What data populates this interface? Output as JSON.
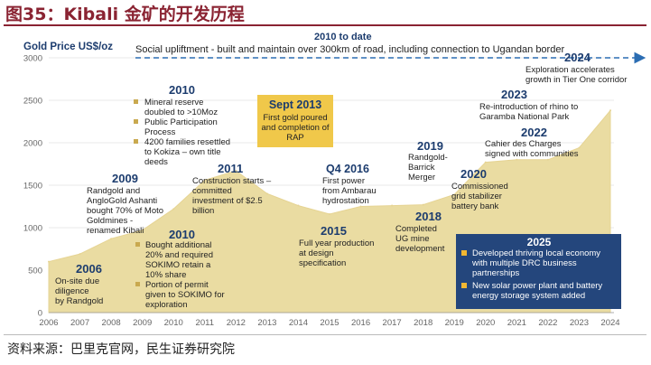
{
  "figure_title": "图35：Kibali 金矿的开发历程",
  "source_note": "资料来源：巴里克官网，民生证券研究院",
  "colors": {
    "area_fill": "#eadca2",
    "area_stroke": "#e6d494",
    "axis_text": "#666666",
    "title_blue": "#1c3c6e",
    "highlight_box": "#f0c84a",
    "box_2025": "#24467c",
    "bullet_2025": "#f2b732",
    "arrow_blue": "#2b6db3",
    "brand_red": "#8a2332"
  },
  "chart_data": {
    "type": "area",
    "ylabel": "Gold Price US$/oz",
    "ylim": [
      0,
      3000
    ],
    "yticks": [
      0,
      500,
      1000,
      1500,
      2000,
      2500,
      3000
    ],
    "x": [
      "2006",
      "2007",
      "2008",
      "2009",
      "2010",
      "2011",
      "2012",
      "2013",
      "2014",
      "2015",
      "2016",
      "2017",
      "2018",
      "2019",
      "2020",
      "2021",
      "2022",
      "2023",
      "2024"
    ],
    "values": [
      600,
      690,
      870,
      970,
      1220,
      1560,
      1670,
      1400,
      1260,
      1160,
      1250,
      1260,
      1270,
      1390,
      1770,
      1800,
      1800,
      1940,
      2380
    ],
    "banner": {
      "label": "2010 to date",
      "text": "Social upliftment  - built and maintain over 300km of road, including connection to Ugandan border"
    },
    "annotations": [
      {
        "year": "2006",
        "text": [
          "On-site due",
          "diligence",
          "by Randgold"
        ]
      },
      {
        "year": "2009",
        "text": [
          "Randgold and",
          "AngloGold Ashanti",
          "bought 70% of Moto",
          "Goldmines -",
          "renamed Kibali"
        ]
      },
      {
        "year": "2010",
        "bullets": [
          "Mineral reserve",
          "doubled  to >10Moz",
          "Public Participation",
          "Process",
          "4200 families resettled",
          "to Kokiza – own title",
          "deeds"
        ]
      },
      {
        "year": "2010",
        "bullets": [
          "Bought additional",
          "20% and required",
          "SOKIMO retain a",
          "10% share",
          "Portion of permit",
          "given to SOKIMO  for",
          "exploration"
        ]
      },
      {
        "year": "2011",
        "text": [
          "Construction starts –",
          "committed",
          "investment of $2.5",
          "billion"
        ]
      },
      {
        "year": "Sept 2013",
        "text": [
          "First gold poured",
          "and completion of",
          "RAP"
        ],
        "highlight": true
      },
      {
        "year": "Q4 2016",
        "text": [
          "First power",
          "from Ambarau",
          "hydrostation"
        ]
      },
      {
        "year": "2015",
        "text": [
          "Full year production",
          "at design",
          "specification"
        ]
      },
      {
        "year": "2018",
        "text": [
          "Completed",
          "UG mine",
          "development"
        ]
      },
      {
        "year": "2019",
        "text": [
          "Randgold-",
          "Barrick",
          "Merger"
        ]
      },
      {
        "year": "2020",
        "text": [
          "Commissioned",
          "grid stabilizer",
          "battery bank"
        ]
      },
      {
        "year": "2022",
        "text": [
          "Cahier des Charges",
          "signed with communities"
        ]
      },
      {
        "year": "2023",
        "text": [
          "Re-introduction of rhino to",
          "Garamba National Park"
        ]
      },
      {
        "year": "2024",
        "text": [
          "Exploration accelerates",
          "growth in Tier One corridor"
        ]
      },
      {
        "year": "2025",
        "bullets": [
          "Developed thriving local economy",
          "with multiple DRC business",
          "partnerships",
          "New solar power plant and battery",
          "energy storage system added"
        ]
      }
    ]
  }
}
